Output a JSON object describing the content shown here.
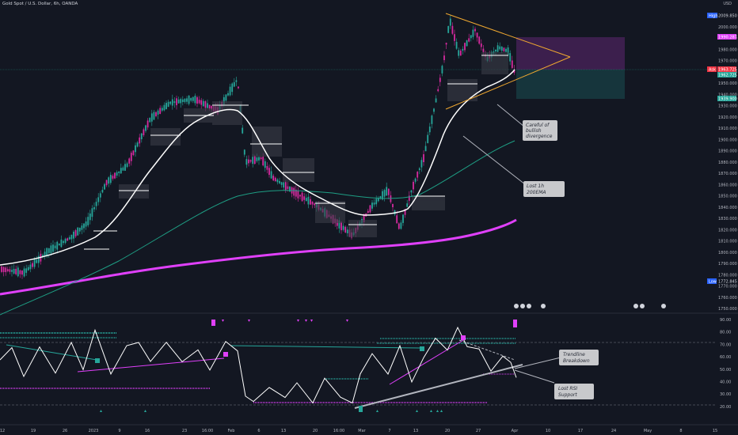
{
  "header": {
    "symbol_title": "Gold Spot / U.S. Dollar, 6h, OANDA",
    "currency": "USD"
  },
  "price_axis": {
    "ticks": [
      "2000.000",
      "1990.000",
      "1980.000",
      "1970.000",
      "1960.000",
      "1950.000",
      "1940.000",
      "1930.000",
      "1920.000",
      "1910.000",
      "1900.000",
      "1890.000",
      "1880.000",
      "1870.000",
      "1860.000",
      "1850.000",
      "1840.000",
      "1830.000",
      "1820.000",
      "1810.000",
      "1800.000",
      "1790.000",
      "1780.000",
      "1770.000",
      "1760.000",
      "1750.000"
    ],
    "high_label": "High",
    "high_value": "2009.850",
    "target_value": "1990.287",
    "ask_label": "Ask",
    "ask_value": "1963.725",
    "bid_value": "1962.725",
    "stop_value": "1939.900",
    "low_label": "Low",
    "low_value": "1772.845"
  },
  "rsi_axis": {
    "ticks": [
      "90.00",
      "80.00",
      "70.00",
      "60.00",
      "50.00",
      "40.00",
      "30.00",
      "20.00"
    ]
  },
  "time_axis": {
    "ticks": [
      "12",
      "19",
      "26",
      "2023",
      "9",
      "16",
      "23",
      "16:00",
      "Feb",
      "6",
      "13",
      "20",
      "16:00",
      "Mar",
      "7",
      "13",
      "20",
      "27",
      "Apr",
      "10",
      "17",
      "24",
      "May",
      "8",
      "15"
    ]
  },
  "annotations": {
    "bullish_divergence": "Careful of bullish divergence",
    "lost_200ema": "Lost 1h 200EMA",
    "trendline_breakdown": "Trendline Breakdown",
    "lost_rsi_support": "Lost RSI Support"
  },
  "colors": {
    "background": "#131722",
    "bull": "#26a69a",
    "bear": "#d62a9f",
    "ema_white": "#ffffff",
    "ema_teal": "#1e9e84",
    "ema_magenta": "#e040fb",
    "triangle": "#f0a830"
  },
  "chart_data": {
    "type": "line",
    "ylim": [
      1745,
      2015
    ],
    "series": [
      {
        "name": "",
        "x": [
          "12",
          "19",
          "26",
          "2023",
          "9",
          "16",
          "23",
          "Feb",
          "6",
          "13",
          "20",
          "Mar",
          "7",
          "13",
          "20",
          "27",
          "Apr"
        ],
        "values": [
          1790,
          1800,
          1812,
          1830,
          1870,
          1905,
          1928,
          1930,
          1870,
          1845,
          1830,
          1822,
          1835,
          1880,
          1975,
          1978,
          1963
        ]
      }
    ]
  }
}
